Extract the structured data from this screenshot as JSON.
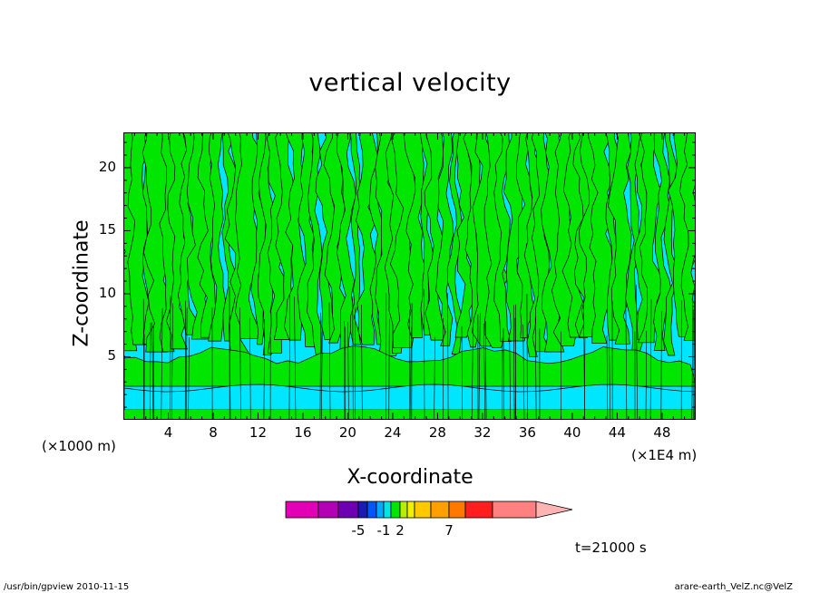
{
  "chart_data": {
    "type": "heatmap",
    "title": "vertical velocity",
    "xlabel": "X-coordinate",
    "ylabel": "Z-coordinate",
    "x_unit": "(×1000 m)",
    "x_unit_right": "(×1E4 m)",
    "x_ticks": [
      "4",
      "8",
      "12",
      "16",
      "20",
      "24",
      "28",
      "32",
      "36",
      "40",
      "44",
      "48"
    ],
    "x_tick_values": [
      4,
      8,
      12,
      16,
      20,
      24,
      28,
      32,
      36,
      40,
      44,
      48
    ],
    "y_ticks": [
      "5",
      "10",
      "15",
      "20"
    ],
    "y_tick_values": [
      5,
      10,
      15,
      20
    ],
    "xlim": [
      0,
      51
    ],
    "ylim": [
      0,
      22.8
    ],
    "colorbar": {
      "colors": [
        "#e300b4",
        "#b400b4",
        "#6e00b4",
        "#1a1ab4",
        "#0055ff",
        "#00aaff",
        "#00e6e6",
        "#00e600",
        "#b4f000",
        "#f0f000",
        "#ffc800",
        "#ffa000",
        "#ff7800",
        "#ff1e1e",
        "#ff8080",
        "#ffb4b4"
      ],
      "labels": [
        "-5",
        "-1",
        "2",
        "7"
      ],
      "label_index": [
        3,
        6,
        8,
        12
      ]
    },
    "fill_colors": {
      "negative": "#00e6ff",
      "positive": "#00e600"
    },
    "time_label": "t=21000 s"
  },
  "footer": {
    "left": "/usr/bin/gpview  2010-11-15",
    "right": "arare-earth_VelZ.nc@VelZ"
  }
}
